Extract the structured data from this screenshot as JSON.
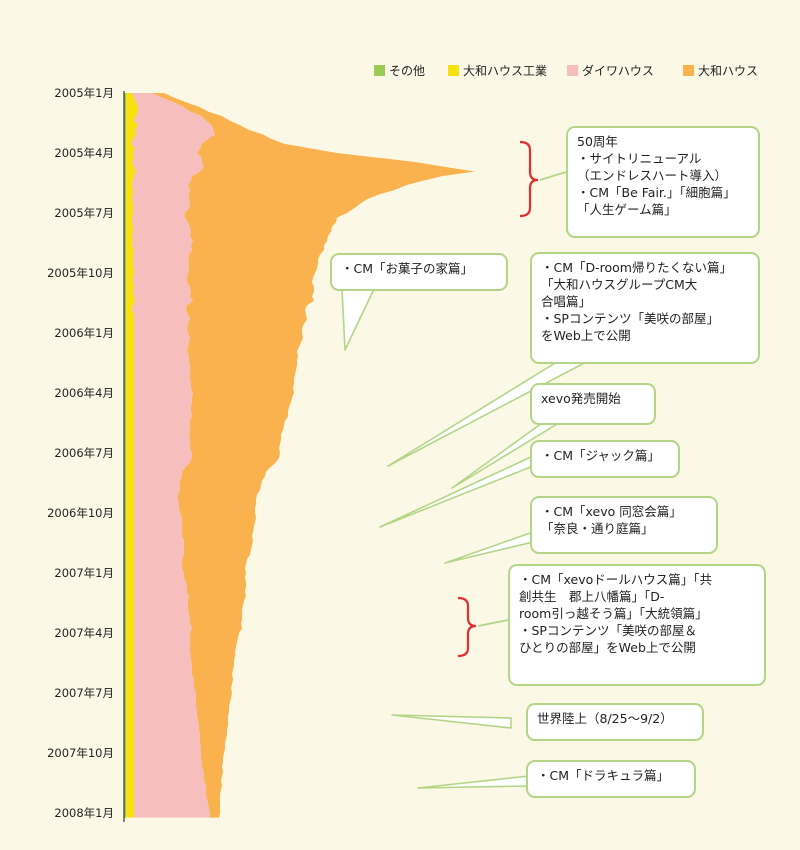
{
  "colors": {
    "background": "#fbf8e6",
    "その他": "#9ccb53",
    "大和ハウス工業": "#f7e111",
    "ダイワハウス": "#f6bebd",
    "大和ハウス": "#f9b24e",
    "callout_border": "#b3d585",
    "bracket": "#e03030"
  },
  "chart_data": {
    "type": "area",
    "orientation": "horizontal-time-axis-vertical",
    "title": "",
    "legend": [
      "その他",
      "大和ハウス工業",
      "ダイワハウス",
      "大和ハウス"
    ],
    "legend_position": "top-right",
    "y_ticks": [
      "2005年1月",
      "2005年4月",
      "2005年7月",
      "2005年10月",
      "2006年1月",
      "2006年4月",
      "2006年7月",
      "2006年10月",
      "2007年1月",
      "2007年4月",
      "2007年7月",
      "2007年10月",
      "2008年1月"
    ],
    "t": [
      0,
      1,
      2,
      3,
      4,
      5,
      6,
      7,
      8,
      9,
      10,
      11,
      12,
      13,
      14,
      15,
      16,
      17,
      18,
      19,
      20,
      21,
      22,
      23,
      24,
      25,
      26,
      27,
      28,
      29,
      30,
      31,
      32,
      33,
      34,
      35,
      36,
      37,
      38,
      39,
      40,
      41,
      42,
      43,
      44,
      45,
      46,
      47,
      48,
      49,
      50,
      51,
      52,
      53,
      54,
      55,
      56,
      57,
      58,
      59,
      60,
      61,
      62,
      63,
      64,
      65,
      66,
      67,
      68,
      69,
      70,
      71,
      72,
      73,
      74,
      75,
      76,
      77,
      78,
      79,
      80,
      81,
      82,
      83,
      84,
      85,
      86,
      87,
      88,
      89,
      90,
      91,
      92,
      93,
      94,
      95,
      96,
      97,
      98,
      99,
      100,
      101,
      102,
      103,
      104,
      105,
      106,
      107,
      108,
      109,
      110,
      111,
      112,
      113,
      114,
      115,
      116,
      117,
      118,
      119,
      120,
      121,
      122,
      123,
      124,
      125,
      126,
      127,
      128,
      129,
      130,
      131,
      132,
      133,
      134,
      135,
      136,
      137,
      138,
      139,
      140,
      141,
      142,
      143,
      144,
      145,
      146,
      147,
      148,
      149,
      150,
      151,
      152,
      153,
      154,
      155,
      156,
      157
    ],
    "series": [
      {
        "name": "その他",
        "values": [
          2,
          2,
          2,
          2,
          2,
          2,
          2,
          2,
          2,
          2,
          2,
          2,
          2,
          2,
          2,
          2,
          2,
          2,
          2,
          2,
          2,
          2,
          2,
          2,
          2,
          2,
          2,
          2,
          2,
          2,
          2,
          2,
          2,
          2,
          2,
          2,
          2,
          2,
          2,
          2,
          2,
          2,
          2,
          2,
          2,
          2,
          2,
          2,
          2,
          2,
          2,
          2,
          2,
          2,
          2,
          2,
          2,
          2,
          2,
          2,
          2,
          2,
          2,
          2,
          2,
          2,
          2,
          2,
          2,
          2,
          2,
          2,
          2,
          2,
          2,
          2,
          2,
          2,
          2,
          2,
          2,
          2,
          2,
          2,
          2,
          2,
          2,
          2,
          2,
          2,
          2,
          2,
          2,
          2,
          2,
          2,
          2,
          2,
          2,
          2,
          2,
          2,
          2,
          2,
          2,
          2,
          2,
          2,
          2,
          2,
          2,
          2,
          2,
          2,
          2,
          2,
          2,
          2,
          2,
          2,
          2,
          2,
          2,
          2,
          2,
          2,
          2,
          2,
          2,
          2,
          2,
          2,
          2,
          2,
          2,
          2,
          2,
          2,
          2,
          2,
          2,
          2,
          2,
          2,
          2,
          2,
          2,
          2,
          2,
          2,
          2,
          2,
          2,
          2,
          2,
          2,
          2,
          2
        ]
      },
      {
        "name": "大和ハウス工業",
        "values": [
          6,
          8,
          10,
          12,
          12,
          10,
          8,
          12,
          9,
          10,
          7,
          5,
          9,
          7,
          8,
          6,
          8,
          10,
          8,
          7,
          6,
          7,
          7,
          6,
          7,
          7,
          7,
          6,
          6,
          7,
          7,
          6,
          7,
          6,
          8,
          7,
          7,
          7,
          8,
          8,
          7,
          7,
          8,
          7,
          8,
          9,
          7,
          6,
          8,
          8,
          8,
          8,
          8,
          8,
          8,
          8,
          8,
          8,
          8,
          8,
          8,
          8,
          8,
          8,
          8,
          8,
          8,
          8,
          8,
          8,
          8,
          8,
          8,
          8,
          8,
          8,
          8,
          8,
          8,
          8,
          8,
          8,
          8,
          8,
          8,
          8,
          8,
          8,
          8,
          8,
          8,
          8,
          8,
          8,
          8,
          8,
          8,
          8,
          8,
          8,
          8,
          8,
          8,
          8,
          8,
          8,
          8,
          8,
          8,
          8,
          8,
          8,
          8,
          8,
          8,
          8,
          8,
          8,
          8,
          8,
          8,
          8,
          8,
          8,
          8,
          8,
          8,
          8,
          8,
          8,
          8,
          8,
          8,
          8,
          8,
          8,
          8,
          8,
          8,
          8,
          8,
          8,
          8,
          8,
          8,
          8,
          8,
          8,
          8,
          8,
          8,
          8,
          8,
          8,
          8,
          8,
          8,
          8
        ]
      },
      {
        "name": "ダイワハウス",
        "values": [
          20,
          28,
          38,
          45,
          52,
          66,
          72,
          74,
          78,
          79,
          75,
          71,
          65,
          64,
          68,
          70,
          70,
          64,
          58,
          58,
          56,
          57,
          56,
          57,
          57,
          56,
          52,
          53,
          56,
          57,
          58,
          58,
          60,
          59,
          58,
          56,
          55,
          56,
          55,
          54,
          54,
          54,
          56,
          58,
          56,
          58,
          54,
          54,
          54,
          56,
          54,
          53,
          54,
          56,
          55,
          54,
          53,
          55,
          55,
          56,
          56,
          56,
          56,
          57,
          57,
          59,
          58,
          58,
          57,
          57,
          58,
          56,
          56,
          56,
          55,
          56,
          56,
          56,
          58,
          58,
          56,
          52,
          48,
          48,
          46,
          46,
          46,
          44,
          44,
          45,
          45,
          46,
          48,
          48,
          48,
          48,
          48,
          50,
          50,
          50,
          50,
          48,
          48,
          48,
          50,
          50,
          52,
          53,
          53,
          55,
          54,
          54,
          54,
          55,
          56,
          56,
          58,
          56,
          56,
          56,
          56,
          56,
          57,
          57,
          58,
          58,
          58,
          60,
          60,
          60,
          62,
          62,
          62,
          62,
          63,
          63,
          64,
          65,
          65,
          66,
          66,
          66,
          67,
          67,
          67,
          68,
          68,
          70,
          70,
          70,
          72,
          72,
          72,
          73,
          74,
          75,
          76,
          76
        ]
      },
      {
        "name": "大和ハウス",
        "values": [
          12,
          12,
          12,
          16,
          18,
          20,
          24,
          28,
          36,
          48,
          64,
          82,
          110,
          140,
          175,
          215,
          240,
          275,
          250,
          232,
          218,
          205,
          190,
          178,
          170,
          165,
          162,
          152,
          148,
          142,
          140,
          138,
          134,
          133,
          132,
          131,
          130,
          129,
          128,
          127,
          126,
          125,
          124,
          123,
          122,
          121,
          120,
          119,
          118,
          117,
          116,
          115,
          114,
          113,
          112,
          111,
          110,
          109,
          108,
          107,
          106,
          105,
          104,
          103,
          102,
          101,
          100,
          99,
          98,
          97,
          96,
          95,
          94,
          93,
          92,
          91,
          90,
          89,
          88,
          87,
          86,
          85,
          84,
          83,
          82,
          81,
          80,
          79,
          78,
          77,
          76,
          75,
          74,
          73,
          72,
          71,
          70,
          69,
          68,
          67,
          66,
          65,
          64,
          63,
          62,
          61,
          60,
          59,
          58,
          57,
          56,
          55,
          54,
          53,
          52,
          51,
          50,
          49,
          48,
          47,
          46,
          45,
          44,
          43,
          42,
          41,
          40,
          39,
          38,
          37,
          36,
          35,
          34,
          33,
          32,
          31,
          30,
          29,
          28,
          27,
          26,
          25,
          24,
          23,
          22,
          21,
          20,
          19,
          18,
          17,
          16,
          15,
          14,
          13,
          12,
          11,
          10,
          9
        ]
      }
    ]
  },
  "annotations": [
    {
      "text": "50周年\n・サイトリニューアル\n（エンドレスハート導入）\n・CM「Be Fair.」「細胞篇」\n「人生ゲーム篇」",
      "bracket": true
    },
    {
      "text": "・CM「お菓子の家篇」",
      "bracket": false
    },
    {
      "text": "・CM「D-room帰りたくない篇」\n「大和ハウスグループCM大\n合唱篇」\n・SPコンテンツ「美咲の部屋」\nをWeb上で公開",
      "bracket": false
    },
    {
      "text": "xevo発売開始",
      "bracket": false
    },
    {
      "text": "・CM「ジャック篇」",
      "bracket": false
    },
    {
      "text": "・CM「xevo 同窓会篇」\n「奈良・通り庭篇」",
      "bracket": false
    },
    {
      "text": "・CM「xevoドールハウス篇」「共\n創共生　郡上八幡篇」「D-\nroom引っ越そう篇」「大統領篇」\n・SPコンテンツ「美咲の部屋＆\nひとりの部屋」をWeb上で公開",
      "bracket": true
    },
    {
      "text": "世界陸上（8/25～9/2）",
      "bracket": false
    },
    {
      "text": "・CM「ドラキュラ篇」",
      "bracket": false
    }
  ]
}
